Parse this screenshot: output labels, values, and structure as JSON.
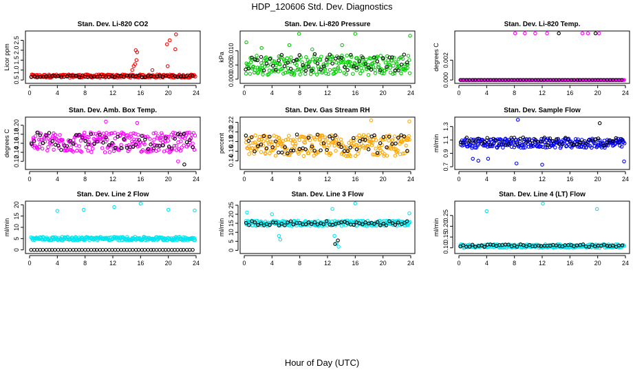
{
  "figure": {
    "title": "HDP_120606  Std. Dev. Diagnostics",
    "xlabel": "Hour of Day (UTC)"
  },
  "chart_data": [
    {
      "type": "scatter",
      "title": "Stan. Dev. Li-820 CO2",
      "xlabel": "",
      "ylabel": "Licor ppm",
      "xlim": [
        0,
        24
      ],
      "ylim": [
        0.4,
        2.9
      ],
      "xticks": [
        "0",
        "4",
        "8",
        "12",
        "16",
        "20",
        "24"
      ],
      "yticks": [
        "0.5",
        "1.0",
        "1.5",
        "2.0",
        "2.5"
      ],
      "ytick_values": [
        0.5,
        1.0,
        1.5,
        2.0,
        2.5
      ],
      "series": [
        {
          "color": "#ff0000",
          "base": 0.7,
          "spread": 0.08,
          "outliers": [
            [
              14.8,
              1.0
            ],
            [
              15.0,
              1.2
            ],
            [
              15.2,
              1.3
            ],
            [
              15.4,
              1.5
            ],
            [
              15.5,
              1.9
            ],
            [
              15.3,
              2.0
            ],
            [
              17.7,
              1.0
            ],
            [
              19.9,
              1.2
            ],
            [
              19.8,
              2.3
            ],
            [
              20.2,
              2.5
            ],
            [
              21.0,
              2.05
            ],
            [
              21.1,
              2.8
            ]
          ]
        },
        {
          "color": "#000000",
          "base": 0.68,
          "spread": 0.05,
          "outliers": []
        }
      ]
    },
    {
      "type": "scatter",
      "title": "Stan. Dev. Li-820 Pressure",
      "xlabel": "",
      "ylabel": "kPa",
      "xlim": [
        0,
        24
      ],
      "ylim": [
        -0.001,
        0.0165
      ],
      "xticks": [
        "0",
        "4",
        "8",
        "12",
        "16",
        "20",
        "24"
      ],
      "yticks": [
        "0.000",
        "0.005",
        "0.010"
      ],
      "ytick_values": [
        0,
        0.005,
        0.01
      ],
      "series": [
        {
          "color": "#00cc00",
          "base": 0.005,
          "spread": 0.0035,
          "outliers": [
            [
              0.3,
              0.013
            ],
            [
              2.5,
              0.011
            ],
            [
              6.5,
              0.012
            ],
            [
              7.9,
              0.016
            ],
            [
              9.8,
              0.0105
            ],
            [
              14.1,
              0.012
            ],
            [
              16.0,
              0.016
            ],
            [
              23.9,
              0.0153
            ]
          ]
        },
        {
          "color": "#000000",
          "base": 0.006,
          "spread": 0.003,
          "outliers": []
        }
      ]
    },
    {
      "type": "scatter",
      "title": "Stan. Dev. Li-820 Temp.",
      "xlabel": "",
      "ylabel": "degrees C",
      "xlim": [
        0,
        24
      ],
      "ylim": [
        -0.0002,
        0.0048
      ],
      "xticks": [
        "0",
        "4",
        "8",
        "12",
        "16",
        "20",
        "24"
      ],
      "yticks": [
        "0.000",
        "0.002"
      ],
      "ytick_values": [
        0,
        0.002
      ],
      "series": [
        {
          "color": "#ff00ff",
          "base": 0,
          "spread": 0,
          "outliers": [
            [
              8.1,
              0.0047
            ],
            [
              9.5,
              0.0047
            ],
            [
              11.0,
              0.0047
            ],
            [
              12.7,
              0.0047
            ],
            [
              17.8,
              0.0047
            ],
            [
              18.6,
              0.0047
            ],
            [
              20.2,
              0.0047
            ]
          ]
        },
        {
          "color": "#000000",
          "base": 0,
          "spread": 0,
          "outliers": [
            [
              14.4,
              0.0047
            ],
            [
              19.7,
              0.0047
            ]
          ]
        }
      ]
    },
    {
      "type": "scatter",
      "title": "Stan. Dev. Amb. Box Temp.",
      "xlabel": "",
      "ylabel": "degrees C",
      "xlim": [
        0,
        24
      ],
      "ylim": [
        0.105,
        0.215
      ],
      "xticks": [
        "0",
        "4",
        "8",
        "12",
        "16",
        "20",
        "24"
      ],
      "yticks": [
        "0.12",
        "0.14",
        "0.16",
        "0.18",
        "0.20"
      ],
      "ytick_values": [
        0.12,
        0.14,
        0.16,
        0.18,
        0.2
      ],
      "series": [
        {
          "color": "#ff00ff",
          "base": 0.162,
          "spread": 0.022,
          "outliers": [
            [
              11.0,
              0.208
            ],
            [
              15.5,
              0.205
            ],
            [
              21.4,
              0.12
            ]
          ]
        },
        {
          "color": "#000000",
          "base": 0.165,
          "spread": 0.02,
          "outliers": [
            [
              22.3,
              0.113
            ]
          ]
        }
      ]
    },
    {
      "type": "scatter",
      "title": "Stan. Dev. Gas Stream RH",
      "xlabel": "",
      "ylabel": "percent",
      "xlim": [
        0,
        24
      ],
      "ylim": [
        0.125,
        0.228
      ],
      "xticks": [
        "0",
        "4",
        "8",
        "12",
        "16",
        "20",
        "24"
      ],
      "yticks": [
        "0.14",
        "0.16",
        "0.18",
        "0.20",
        "0.22"
      ],
      "ytick_values": [
        0.14,
        0.16,
        0.18,
        0.2,
        0.22
      ],
      "series": [
        {
          "color": "#ffa500",
          "base": 0.172,
          "spread": 0.022,
          "outliers": [
            [
              18.3,
              0.224
            ],
            [
              23.8,
              0.222
            ]
          ]
        },
        {
          "color": "#000000",
          "base": 0.175,
          "spread": 0.02,
          "outliers": []
        }
      ]
    },
    {
      "type": "scatter",
      "title": "Stan. Dev. Sample Flow",
      "xlabel": "",
      "ylabel": "ml/min",
      "xlim": [
        0,
        24
      ],
      "ylim": [
        0.68,
        1.42
      ],
      "xticks": [
        "0",
        "4",
        "8",
        "12",
        "16",
        "20",
        "24"
      ],
      "yticks": [
        "0.7",
        "0.9",
        "1.1",
        "1.3"
      ],
      "ytick_values": [
        0.7,
        0.9,
        1.1,
        1.3
      ],
      "series": [
        {
          "color": "#0000ff",
          "base": 1.05,
          "spread": 0.07,
          "outliers": [
            [
              2.0,
              0.82
            ],
            [
              2.8,
              0.79
            ],
            [
              4.2,
              0.82
            ],
            [
              8.3,
              0.75
            ],
            [
              8.5,
              1.4
            ],
            [
              12.0,
              0.73
            ],
            [
              23.8,
              0.78
            ]
          ]
        },
        {
          "color": "#000000",
          "base": 1.08,
          "spread": 0.06,
          "outliers": [
            [
              20.3,
              1.35
            ]
          ]
        }
      ]
    },
    {
      "type": "scatter",
      "title": "Stan. Dev. Line 2 Flow",
      "xlabel": "",
      "ylabel": "ml/min",
      "xlim": [
        0,
        24
      ],
      "ylim": [
        -1,
        21
      ],
      "xticks": [
        "0",
        "4",
        "8",
        "12",
        "16",
        "20",
        "24"
      ],
      "yticks": [
        "0",
        "5",
        "10",
        "15",
        "20"
      ],
      "ytick_values": [
        0,
        5,
        10,
        15,
        20
      ],
      "series": [
        {
          "color": "#00e5ee",
          "base": 5,
          "spread": 0.8,
          "outliers": [
            [
              4.0,
              17.3
            ],
            [
              7.8,
              17.8
            ],
            [
              12.2,
              19.0
            ],
            [
              16.0,
              20.5
            ],
            [
              20.0,
              17.8
            ],
            [
              23.8,
              17.5
            ]
          ]
        },
        {
          "color": "#000000",
          "base": 0,
          "spread": 0,
          "outliers": []
        }
      ]
    },
    {
      "type": "scatter",
      "title": "Stan. Dev. Line 3 Flow",
      "xlabel": "",
      "ylabel": "ml/min",
      "xlim": [
        0,
        24
      ],
      "ylim": [
        -1,
        26.5
      ],
      "xticks": [
        "0",
        "4",
        "8",
        "12",
        "16",
        "20",
        "24"
      ],
      "yticks": [
        "0",
        "5",
        "10",
        "15",
        "20",
        "25"
      ],
      "ytick_values": [
        0,
        5,
        10,
        15,
        20,
        25
      ],
      "series": [
        {
          "color": "#00e5ee",
          "base": 15,
          "spread": 1.5,
          "outliers": [
            [
              0.4,
              21
            ],
            [
              4.0,
              20
            ],
            [
              5.0,
              8
            ],
            [
              5.2,
              6
            ],
            [
              12.7,
              23
            ],
            [
              13.0,
              8
            ],
            [
              13.3,
              4
            ],
            [
              13.6,
              2
            ],
            [
              16.0,
              26
            ],
            [
              23.8,
              20.5
            ]
          ]
        },
        {
          "color": "#000000",
          "base": 15,
          "spread": 1.2,
          "outliers": [
            [
              13.1,
              3.5
            ],
            [
              13.5,
              5.5
            ]
          ]
        }
      ]
    },
    {
      "type": "scatter",
      "title": "Stan. Dev. Line 4 (LT) Flow",
      "xlabel": "",
      "ylabel": "ml/min",
      "xlim": [
        0,
        24
      ],
      "ylim": [
        0.08,
        0.31
      ],
      "xticks": [
        "0",
        "4",
        "8",
        "12",
        "16",
        "20",
        "24"
      ],
      "yticks": [
        "0.10",
        "0.15",
        "0.20",
        "0.25"
      ],
      "ytick_values": [
        0.1,
        0.15,
        0.2,
        0.25
      ],
      "series": [
        {
          "color": "#00e5ee",
          "base": 0.108,
          "spread": 0.008,
          "outliers": [
            [
              4.0,
              0.27
            ],
            [
              12.1,
              0.305
            ],
            [
              19.9,
              0.28
            ]
          ]
        },
        {
          "color": "#000000",
          "base": 0.11,
          "spread": 0.006,
          "outliers": []
        }
      ]
    }
  ]
}
